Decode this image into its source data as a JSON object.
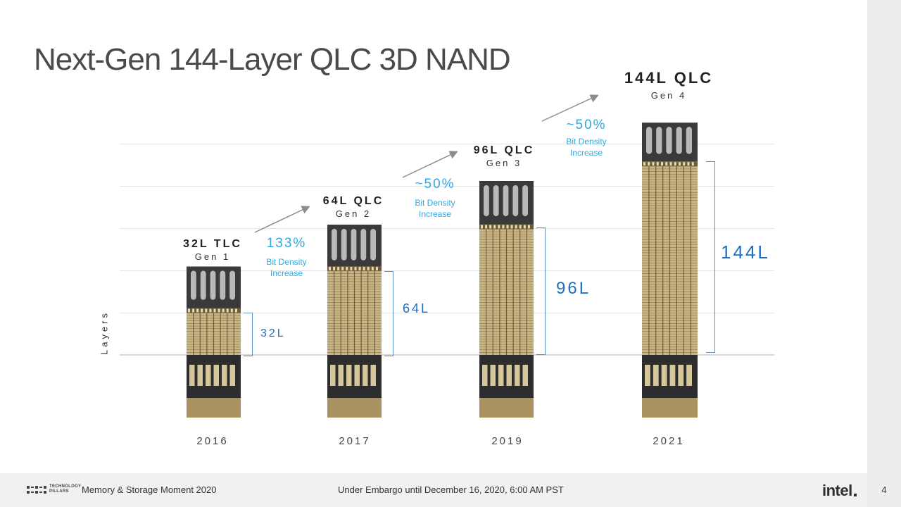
{
  "slide": {
    "title": "Next-Gen 144-Layer QLC 3D NAND",
    "page_number": "4",
    "y_axis_label": "Layers"
  },
  "footer": {
    "logo_line1": "TECHNOLOGY",
    "logo_line2": "PILLARS",
    "event": "Memory & Storage Moment 2020",
    "embargo": "Under Embargo until December 16, 2020, 6:00 AM PST",
    "brand": "intel"
  },
  "generations": [
    {
      "name": "32L TLC",
      "gen": "Gen 1",
      "year": "2016",
      "layers": "32L"
    },
    {
      "name": "64L QLC",
      "gen": "Gen 2",
      "year": "2017",
      "layers": "64L"
    },
    {
      "name": "96L QLC",
      "gen": "Gen 3",
      "year": "2019",
      "layers": "96L"
    },
    {
      "name": "144L QLC",
      "gen": "Gen 4",
      "year": "2021",
      "layers": "144L"
    }
  ],
  "transitions": [
    {
      "pct": "133%",
      "note_line1": "Bit Density",
      "note_line2": "Increase"
    },
    {
      "pct": "~50%",
      "note_line1": "Bit Density",
      "note_line2": "Increase"
    },
    {
      "pct": "~50%",
      "note_line1": "Bit Density",
      "note_line2": "Increase"
    }
  ],
  "colors": {
    "accent_blue": "#1e6fc1",
    "density_cyan": "#2ea8e0",
    "stack_gold": "#c9b483"
  },
  "chart_data": {
    "type": "bar",
    "categories": [
      "2016",
      "2017",
      "2019",
      "2021"
    ],
    "values": [
      32,
      64,
      96,
      144
    ],
    "ylabel": "Layers",
    "ylim": [
      0,
      160
    ]
  }
}
